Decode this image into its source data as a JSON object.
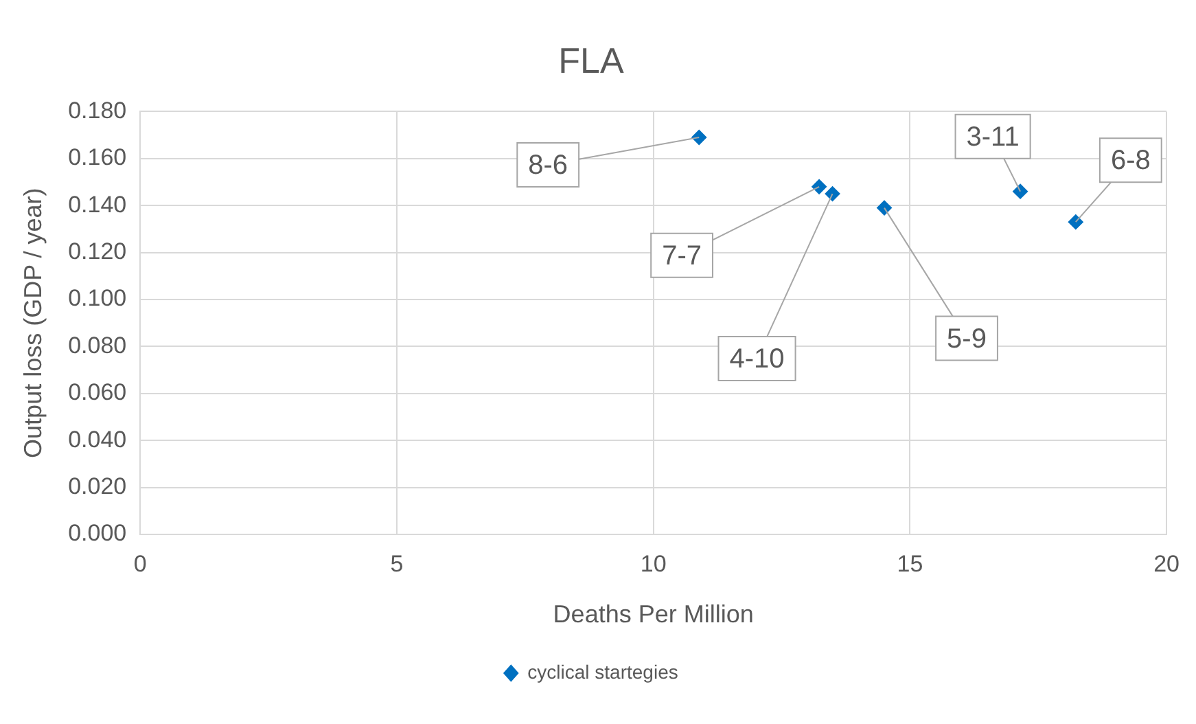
{
  "chart_data": {
    "type": "scatter",
    "title": "FLA",
    "xlabel": "Deaths Per Million",
    "ylabel": "Output loss (GDP / year)",
    "x": [
      10.89,
      13.23,
      13.49,
      14.5,
      17.15,
      18.23
    ],
    "series": [
      {
        "name": "cyclical startegies",
        "color": "#0070c0",
        "values": [
          0.169,
          0.148,
          0.145,
          0.139,
          0.146,
          0.133
        ]
      }
    ],
    "annotations": [
      {
        "text": "8-6",
        "x": 10.89,
        "y": 0.169
      },
      {
        "text": "7-7",
        "x": 13.23,
        "y": 0.148
      },
      {
        "text": "4-10",
        "x": 13.49,
        "y": 0.145
      },
      {
        "text": "5-9",
        "x": 14.5,
        "y": 0.139
      },
      {
        "text": "3-11",
        "x": 17.15,
        "y": 0.146
      },
      {
        "text": "6-8",
        "x": 18.23,
        "y": 0.133
      }
    ],
    "xlim": [
      0,
      20
    ],
    "xticks": [
      0,
      5,
      10,
      15,
      20
    ],
    "ylim": [
      0,
      0.18
    ],
    "yticks": [
      {
        "value": 0,
        "label": "0.000"
      },
      {
        "value": 0.02,
        "label": "0.020"
      },
      {
        "value": 0.04,
        "label": "0.040"
      },
      {
        "value": 0.06,
        "label": "0.060"
      },
      {
        "value": 0.08,
        "label": "0.080"
      },
      {
        "value": 0.1,
        "label": "0.100"
      },
      {
        "value": 0.12,
        "label": "0.120"
      },
      {
        "value": 0.14,
        "label": "0.140"
      },
      {
        "value": 0.16,
        "label": "0.160"
      },
      {
        "value": 0.18,
        "label": "0.180"
      }
    ],
    "grid": true,
    "legend": "bottom",
    "marker": "diamond"
  }
}
